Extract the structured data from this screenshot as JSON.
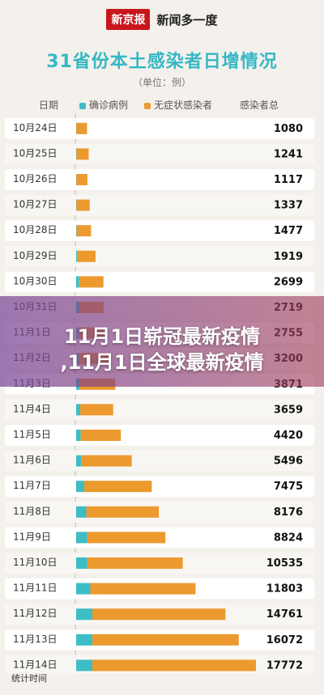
{
  "brand": {
    "logo": "新京报",
    "name": "新闻多一度"
  },
  "chart_data": {
    "type": "bar",
    "stacked": true,
    "orientation": "horizontal",
    "title": "31省份本土感染者日增情况",
    "unit": "（单位：例）",
    "header": {
      "date": "日期",
      "confirmed": "确诊病例",
      "asymptomatic": "无症状感染者",
      "total": "感染者总"
    },
    "colors": {
      "confirmed": "#3dbdc6",
      "asymptomatic": "#ec9a2e"
    },
    "categories": [
      "10月24日",
      "10月25日",
      "10月26日",
      "10月27日",
      "10月28日",
      "10月29日",
      "10月30日",
      "10月31日",
      "11月1日",
      "11月2日",
      "11月3日",
      "11月4日",
      "11月5日",
      "11月6日",
      "11月7日",
      "11月8日",
      "11月9日",
      "11月10日",
      "11月11日",
      "11月12日",
      "11月13日",
      "11月14日"
    ],
    "series": [
      {
        "key": "confirmed",
        "name": "确诊病例",
        "values": [
          20,
          30,
          25,
          30,
          40,
          100,
          300,
          350,
          270,
          270,
          350,
          400,
          450,
          500,
          800,
          1000,
          1100,
          1100,
          1400,
          1600,
          1600,
          1600
        ]
      },
      {
        "key": "asymptomatic",
        "name": "无症状感染者",
        "values": [
          1060,
          1211,
          1092,
          1307,
          1437,
          1819,
          2399,
          2369,
          2485,
          2930,
          3521,
          3259,
          3970,
          4996,
          6675,
          7176,
          7724,
          9435,
          10403,
          13161,
          14472,
          16172
        ]
      }
    ],
    "totals_display": [
      "1080",
      "1241",
      "1117",
      "1337",
      "1477",
      "1919",
      "2699",
      "2719",
      "2755",
      "3200",
      "3871",
      "3659",
      "4420",
      "5496",
      "7475",
      "8176",
      "8824",
      "10535",
      "11803",
      "14761",
      "16072",
      "17772"
    ],
    "xlim": [
      0,
      17772
    ]
  },
  "overlay": {
    "line1": "11月1日崭冠最新疫情",
    "line2": ",11月1日全球最新疫情"
  },
  "footer": {
    "text": "统计时间"
  }
}
